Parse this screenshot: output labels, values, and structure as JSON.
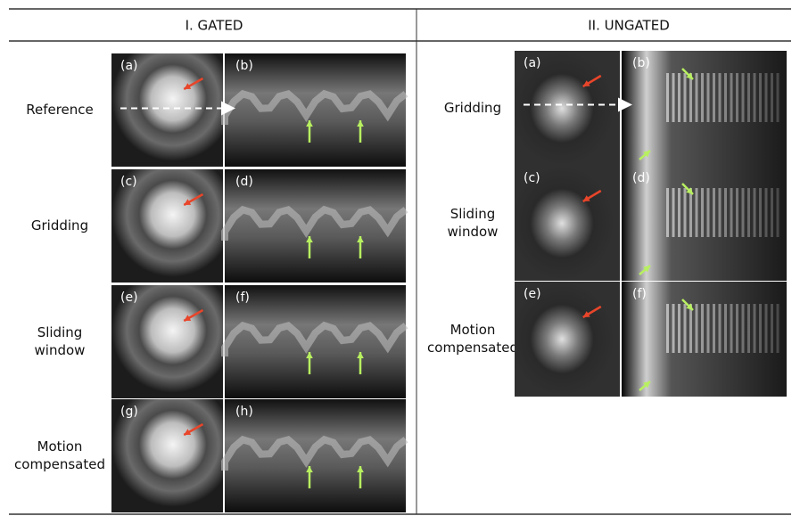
{
  "gated": {
    "title": "I. GATED",
    "rows": [
      {
        "label": [
          "Reference"
        ],
        "panels": [
          "(a)",
          "(b)"
        ]
      },
      {
        "label": [
          "Gridding"
        ],
        "panels": [
          "(c)",
          "(d)"
        ]
      },
      {
        "label": [
          "Sliding",
          "window"
        ],
        "panels": [
          "(e)",
          "(f)"
        ]
      },
      {
        "label": [
          "Motion",
          "compensated"
        ],
        "panels": [
          "(g)",
          "(h)"
        ]
      }
    ]
  },
  "ungated": {
    "title": "II. UNGATED",
    "rows": [
      {
        "label": [
          "Gridding"
        ],
        "panels": [
          "(a)",
          "(b)"
        ]
      },
      {
        "label": [
          "Sliding",
          "window"
        ],
        "panels": [
          "(c)",
          "(d)"
        ]
      },
      {
        "label": [
          "Motion",
          "compensated"
        ],
        "panels": [
          "(e)",
          "(f)"
        ]
      }
    ]
  }
}
